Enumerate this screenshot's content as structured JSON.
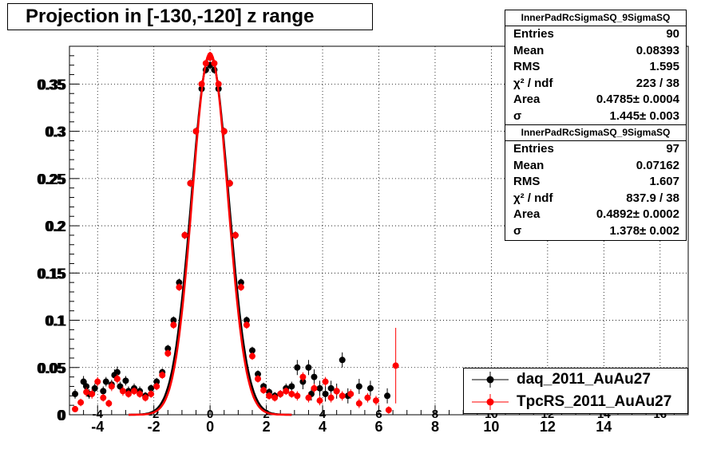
{
  "title": "Projection in [-130,-120] z range",
  "stats": [
    {
      "name": "InnerPadRcSigmaSQ_9SigmaSQ",
      "rows": [
        {
          "k": "Entries",
          "v": "90"
        },
        {
          "k": "Mean",
          "v": "0.08393"
        },
        {
          "k": "RMS",
          "v": "1.595"
        },
        {
          "k": "χ² / ndf",
          "v": "223 / 38"
        },
        {
          "k": "Area",
          "v": "0.4785± 0.0004"
        },
        {
          "k": "σ",
          "v": "1.445± 0.003"
        }
      ]
    },
    {
      "name": "InnerPadRcSigmaSQ_9SigmaSQ",
      "rows": [
        {
          "k": "Entries",
          "v": "97"
        },
        {
          "k": "Mean",
          "v": "0.07162"
        },
        {
          "k": "RMS",
          "v": "1.607"
        },
        {
          "k": "χ² / ndf",
          "v": "837.9 / 38"
        },
        {
          "k": "Area",
          "v": "0.4892± 0.0002"
        },
        {
          "k": "σ",
          "v": "1.378± 0.002"
        }
      ]
    }
  ],
  "legend": [
    {
      "label": "daq_2011_AuAu27",
      "color": "#000000"
    },
    {
      "label": "TpcRS_2011_AuAu27",
      "color": "#ff0000"
    }
  ],
  "chart_data": {
    "type": "scatter",
    "title": "Projection in [-130,-120] z range",
    "xlim": [
      -5,
      17
    ],
    "ylim": [
      0,
      0.39
    ],
    "x_ticks": [
      -4,
      -2,
      0,
      2,
      4,
      6,
      8,
      10,
      12,
      14
    ],
    "x_tick_labels": [
      "-4",
      "-2",
      "0",
      "2",
      "4",
      "6",
      "8",
      "10",
      "12",
      "14"
    ],
    "x_inner_tick_labels": [
      "-4",
      "-2",
      "0",
      "2",
      "4",
      "6",
      "8",
      "10",
      "12",
      "14",
      "16"
    ],
    "y_ticks": [
      0,
      0.05,
      0.1,
      0.15,
      0.2,
      0.25,
      0.3,
      0.35
    ],
    "y_tick_labels": [
      "0",
      "0.05",
      "0.1",
      "0.15",
      "0.2",
      "0.25",
      "0.3",
      "0.35"
    ],
    "grid": true,
    "legend_position": "bottom-right",
    "series": [
      {
        "name": "daq_2011_AuAu27",
        "color": "#000000",
        "gauss": {
          "amplitude": 0.381,
          "sigma": 0.66
        },
        "points": [
          {
            "x": -4.8,
            "y": 0.022,
            "e": 0.005
          },
          {
            "x": -4.5,
            "y": 0.035,
            "e": 0.006
          },
          {
            "x": -4.4,
            "y": 0.03,
            "e": 0.006
          },
          {
            "x": -4.3,
            "y": 0.022,
            "e": 0.005
          },
          {
            "x": -4.1,
            "y": 0.028,
            "e": 0.005
          },
          {
            "x": -3.8,
            "y": 0.025,
            "e": 0.005
          },
          {
            "x": -3.7,
            "y": 0.035,
            "e": 0.005
          },
          {
            "x": -3.5,
            "y": 0.032,
            "e": 0.005
          },
          {
            "x": -3.4,
            "y": 0.042,
            "e": 0.006
          },
          {
            "x": -3.3,
            "y": 0.045,
            "e": 0.006
          },
          {
            "x": -3.2,
            "y": 0.03,
            "e": 0.005
          },
          {
            "x": -3.0,
            "y": 0.036,
            "e": 0.005
          },
          {
            "x": -2.9,
            "y": 0.025,
            "e": 0.005
          },
          {
            "x": -2.7,
            "y": 0.028,
            "e": 0.005
          },
          {
            "x": -2.5,
            "y": 0.025,
            "e": 0.005
          },
          {
            "x": -2.3,
            "y": 0.02,
            "e": 0.004
          },
          {
            "x": -2.1,
            "y": 0.028,
            "e": 0.004
          },
          {
            "x": -1.9,
            "y": 0.035,
            "e": 0.004
          },
          {
            "x": -1.7,
            "y": 0.045,
            "e": 0.004
          },
          {
            "x": -1.5,
            "y": 0.07,
            "e": 0.004
          },
          {
            "x": -1.3,
            "y": 0.1,
            "e": 0.004
          },
          {
            "x": -1.1,
            "y": 0.14,
            "e": 0.004
          },
          {
            "x": -0.9,
            "y": 0.19,
            "e": 0.004
          },
          {
            "x": -0.7,
            "y": 0.245,
            "e": 0.004
          },
          {
            "x": -0.5,
            "y": 0.3,
            "e": 0.004
          },
          {
            "x": -0.3,
            "y": 0.345,
            "e": 0.004
          },
          {
            "x": -0.15,
            "y": 0.365,
            "e": 0.004
          },
          {
            "x": 0.0,
            "y": 0.37,
            "e": 0.004
          },
          {
            "x": 0.15,
            "y": 0.365,
            "e": 0.004
          },
          {
            "x": 0.3,
            "y": 0.345,
            "e": 0.004
          },
          {
            "x": 0.5,
            "y": 0.3,
            "e": 0.004
          },
          {
            "x": 0.7,
            "y": 0.245,
            "e": 0.004
          },
          {
            "x": 0.9,
            "y": 0.19,
            "e": 0.004
          },
          {
            "x": 1.1,
            "y": 0.14,
            "e": 0.004
          },
          {
            "x": 1.3,
            "y": 0.1,
            "e": 0.004
          },
          {
            "x": 1.5,
            "y": 0.068,
            "e": 0.004
          },
          {
            "x": 1.7,
            "y": 0.043,
            "e": 0.004
          },
          {
            "x": 1.9,
            "y": 0.03,
            "e": 0.004
          },
          {
            "x": 2.1,
            "y": 0.024,
            "e": 0.004
          },
          {
            "x": 2.3,
            "y": 0.02,
            "e": 0.004
          },
          {
            "x": 2.5,
            "y": 0.022,
            "e": 0.004
          },
          {
            "x": 2.7,
            "y": 0.028,
            "e": 0.005
          },
          {
            "x": 2.9,
            "y": 0.03,
            "e": 0.005
          },
          {
            "x": 3.1,
            "y": 0.05,
            "e": 0.008
          },
          {
            "x": 3.3,
            "y": 0.035,
            "e": 0.008
          },
          {
            "x": 3.5,
            "y": 0.05,
            "e": 0.008
          },
          {
            "x": 3.6,
            "y": 0.022,
            "e": 0.007
          },
          {
            "x": 3.7,
            "y": 0.04,
            "e": 0.008
          },
          {
            "x": 3.9,
            "y": 0.028,
            "e": 0.008
          },
          {
            "x": 4.1,
            "y": 0.022,
            "e": 0.008
          },
          {
            "x": 4.3,
            "y": 0.028,
            "e": 0.008
          },
          {
            "x": 4.5,
            "y": 0.025,
            "e": 0.008
          },
          {
            "x": 4.7,
            "y": 0.058,
            "e": 0.008
          },
          {
            "x": 4.9,
            "y": 0.02,
            "e": 0.008
          },
          {
            "x": 5.3,
            "y": 0.03,
            "e": 0.008
          },
          {
            "x": 5.7,
            "y": 0.028,
            "e": 0.008
          },
          {
            "x": 6.3,
            "y": 0.02,
            "e": 0.008
          }
        ]
      },
      {
        "name": "TpcRS_2011_AuAu27",
        "color": "#ff0000",
        "gauss": {
          "amplitude": 0.383,
          "sigma": 0.63
        },
        "points": [
          {
            "x": -4.8,
            "y": 0.006,
            "e": 0.003
          },
          {
            "x": -4.6,
            "y": 0.013,
            "e": 0.004
          },
          {
            "x": -4.4,
            "y": 0.024,
            "e": 0.005
          },
          {
            "x": -4.2,
            "y": 0.022,
            "e": 0.005
          },
          {
            "x": -4.0,
            "y": 0.035,
            "e": 0.005
          },
          {
            "x": -3.8,
            "y": 0.018,
            "e": 0.004
          },
          {
            "x": -3.6,
            "y": 0.012,
            "e": 0.004
          },
          {
            "x": -3.5,
            "y": 0.03,
            "e": 0.005
          },
          {
            "x": -3.3,
            "y": 0.038,
            "e": 0.005
          },
          {
            "x": -3.1,
            "y": 0.025,
            "e": 0.005
          },
          {
            "x": -2.9,
            "y": 0.022,
            "e": 0.004
          },
          {
            "x": -2.7,
            "y": 0.025,
            "e": 0.004
          },
          {
            "x": -2.5,
            "y": 0.022,
            "e": 0.004
          },
          {
            "x": -2.3,
            "y": 0.018,
            "e": 0.004
          },
          {
            "x": -2.1,
            "y": 0.022,
            "e": 0.004
          },
          {
            "x": -1.9,
            "y": 0.03,
            "e": 0.004
          },
          {
            "x": -1.7,
            "y": 0.042,
            "e": 0.004
          },
          {
            "x": -1.5,
            "y": 0.065,
            "e": 0.004
          },
          {
            "x": -1.3,
            "y": 0.095,
            "e": 0.004
          },
          {
            "x": -1.1,
            "y": 0.135,
            "e": 0.004
          },
          {
            "x": -0.9,
            "y": 0.19,
            "e": 0.004
          },
          {
            "x": -0.7,
            "y": 0.245,
            "e": 0.004
          },
          {
            "x": -0.5,
            "y": 0.3,
            "e": 0.004
          },
          {
            "x": -0.3,
            "y": 0.35,
            "e": 0.004
          },
          {
            "x": -0.15,
            "y": 0.372,
            "e": 0.004
          },
          {
            "x": 0.0,
            "y": 0.378,
            "e": 0.004
          },
          {
            "x": 0.15,
            "y": 0.372,
            "e": 0.004
          },
          {
            "x": 0.3,
            "y": 0.35,
            "e": 0.004
          },
          {
            "x": 0.5,
            "y": 0.3,
            "e": 0.004
          },
          {
            "x": 0.7,
            "y": 0.245,
            "e": 0.004
          },
          {
            "x": 0.9,
            "y": 0.19,
            "e": 0.004
          },
          {
            "x": 1.1,
            "y": 0.135,
            "e": 0.004
          },
          {
            "x": 1.3,
            "y": 0.095,
            "e": 0.004
          },
          {
            "x": 1.5,
            "y": 0.062,
            "e": 0.004
          },
          {
            "x": 1.7,
            "y": 0.038,
            "e": 0.004
          },
          {
            "x": 1.9,
            "y": 0.026,
            "e": 0.004
          },
          {
            "x": 2.1,
            "y": 0.02,
            "e": 0.004
          },
          {
            "x": 2.3,
            "y": 0.018,
            "e": 0.004
          },
          {
            "x": 2.5,
            "y": 0.022,
            "e": 0.004
          },
          {
            "x": 2.7,
            "y": 0.025,
            "e": 0.004
          },
          {
            "x": 2.9,
            "y": 0.022,
            "e": 0.004
          },
          {
            "x": 3.1,
            "y": 0.02,
            "e": 0.005
          },
          {
            "x": 3.3,
            "y": 0.04,
            "e": 0.005
          },
          {
            "x": 3.5,
            "y": 0.018,
            "e": 0.005
          },
          {
            "x": 3.7,
            "y": 0.028,
            "e": 0.005
          },
          {
            "x": 3.9,
            "y": 0.015,
            "e": 0.005
          },
          {
            "x": 4.1,
            "y": 0.035,
            "e": 0.005
          },
          {
            "x": 4.3,
            "y": 0.018,
            "e": 0.005
          },
          {
            "x": 4.5,
            "y": 0.025,
            "e": 0.005
          },
          {
            "x": 4.7,
            "y": 0.02,
            "e": 0.005
          },
          {
            "x": 5.0,
            "y": 0.022,
            "e": 0.005
          },
          {
            "x": 5.3,
            "y": 0.012,
            "e": 0.005
          },
          {
            "x": 5.6,
            "y": 0.018,
            "e": 0.005
          },
          {
            "x": 5.9,
            "y": 0.015,
            "e": 0.005
          },
          {
            "x": 6.35,
            "y": 0.005,
            "e": 0.004
          },
          {
            "x": 6.6,
            "y": 0.052,
            "e": 0.04
          }
        ]
      }
    ]
  }
}
